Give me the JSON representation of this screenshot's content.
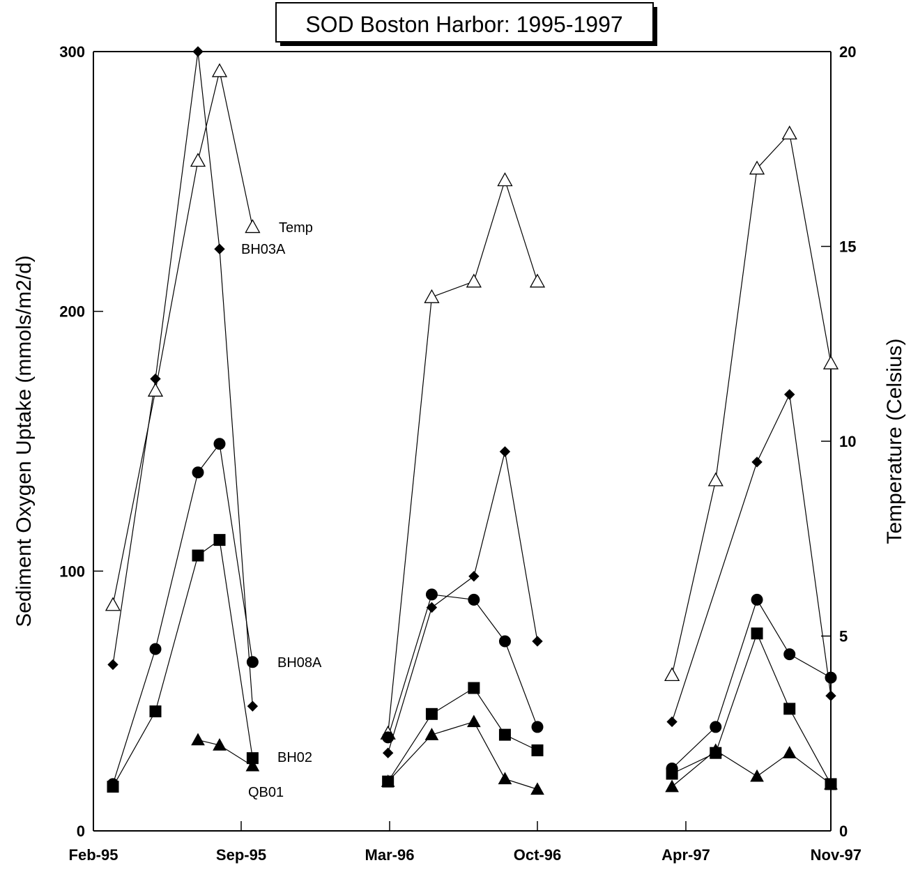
{
  "chart_data": {
    "type": "line",
    "title": "SOD Boston Harbor: 1995-1997",
    "ylabel": "Sediment Oxygen Uptake (mmols/m2/d)",
    "y2label": "Temperature (Celsius)",
    "ylim": [
      0,
      300
    ],
    "y2lim": [
      0,
      20
    ],
    "yticks": [
      "0",
      "100",
      "200",
      "300"
    ],
    "y2ticks": [
      "0",
      "5",
      "10",
      "15",
      "20"
    ],
    "xticks": [
      "Feb-95",
      "Sep-95",
      "Mar-96",
      "Oct-96",
      "Apr-97",
      "Nov-97"
    ],
    "grid": false,
    "series": [
      {
        "name": "Temp",
        "axis": "right",
        "marker": "open-triangle",
        "segments": [
          [
            [
              "1995-03-01",
              5.8
            ],
            [
              "1995-05-01",
              11.3
            ],
            [
              "1995-07-01",
              17.2
            ],
            [
              "1995-08-01",
              19.5
            ],
            [
              "1995-09-15",
              15.5
            ]
          ],
          [
            [
              "1996-02-28",
              2.5
            ],
            [
              "1996-05-01",
              13.7
            ],
            [
              "1996-07-01",
              14.1
            ],
            [
              "1996-08-15",
              16.7
            ],
            [
              "1996-10-01",
              14.1
            ]
          ],
          [
            [
              "1997-03-15",
              4.0
            ],
            [
              "1997-05-15",
              9.0
            ],
            [
              "1997-07-15",
              17.0
            ],
            [
              "1997-09-01",
              17.9
            ],
            [
              "1997-11-01",
              12.0
            ]
          ]
        ]
      },
      {
        "name": "BH03A",
        "axis": "left",
        "marker": "diamond",
        "segments": [
          [
            [
              "1995-03-01",
              64
            ],
            [
              "1995-05-01",
              174
            ],
            [
              "1995-07-01",
              300
            ],
            [
              "1995-08-01",
              224
            ],
            [
              "1995-09-15",
              48
            ]
          ],
          [
            [
              "1996-02-28",
              30
            ],
            [
              "1996-05-01",
              86
            ],
            [
              "1996-07-01",
              98
            ],
            [
              "1996-08-15",
              146
            ],
            [
              "1996-10-01",
              73
            ]
          ],
          [
            [
              "1997-03-15",
              42
            ],
            [
              "1997-05-15",
              null
            ],
            [
              "1997-07-15",
              142
            ],
            [
              "1997-09-01",
              168
            ],
            [
              "1997-11-01",
              52
            ]
          ]
        ]
      },
      {
        "name": "BH08A",
        "axis": "left",
        "marker": "circle",
        "segments": [
          [
            [
              "1995-03-01",
              18
            ],
            [
              "1995-05-01",
              70
            ],
            [
              "1995-07-01",
              138
            ],
            [
              "1995-08-01",
              149
            ],
            [
              "1995-09-15",
              65
            ]
          ],
          [
            [
              "1996-02-28",
              36
            ],
            [
              "1996-05-01",
              91
            ],
            [
              "1996-07-01",
              89
            ],
            [
              "1996-08-15",
              73
            ],
            [
              "1996-10-01",
              40
            ]
          ],
          [
            [
              "1997-03-15",
              24
            ],
            [
              "1997-05-15",
              40
            ],
            [
              "1997-07-15",
              89
            ],
            [
              "1997-09-01",
              68
            ],
            [
              "1997-11-01",
              59
            ]
          ]
        ]
      },
      {
        "name": "BH02",
        "axis": "left",
        "marker": "square",
        "segments": [
          [
            [
              "1995-03-01",
              17
            ],
            [
              "1995-05-01",
              46
            ],
            [
              "1995-07-01",
              106
            ],
            [
              "1995-08-01",
              112
            ],
            [
              "1995-09-15",
              28
            ]
          ],
          [
            [
              "1996-02-28",
              19
            ],
            [
              "1996-05-01",
              45
            ],
            [
              "1996-07-01",
              55
            ],
            [
              "1996-08-15",
              37
            ],
            [
              "1996-10-01",
              31
            ]
          ],
          [
            [
              "1997-03-15",
              22
            ],
            [
              "1997-05-15",
              30
            ],
            [
              "1997-07-15",
              76
            ],
            [
              "1997-09-01",
              47
            ],
            [
              "1997-11-01",
              18
            ]
          ]
        ]
      },
      {
        "name": "QB01",
        "axis": "left",
        "marker": "triangle",
        "segments": [
          [
            [
              "1995-07-01",
              35
            ],
            [
              "1995-08-01",
              33
            ],
            [
              "1995-09-15",
              25
            ]
          ],
          [
            [
              "1996-02-28",
              19
            ],
            [
              "1996-05-01",
              37
            ],
            [
              "1996-07-01",
              42
            ],
            [
              "1996-08-15",
              20
            ],
            [
              "1996-10-01",
              16
            ]
          ],
          [
            [
              "1997-03-15",
              17
            ],
            [
              "1997-05-15",
              31
            ],
            [
              "1997-07-15",
              21
            ],
            [
              "1997-09-01",
              30
            ],
            [
              "1997-11-01",
              18
            ]
          ]
        ]
      }
    ]
  }
}
